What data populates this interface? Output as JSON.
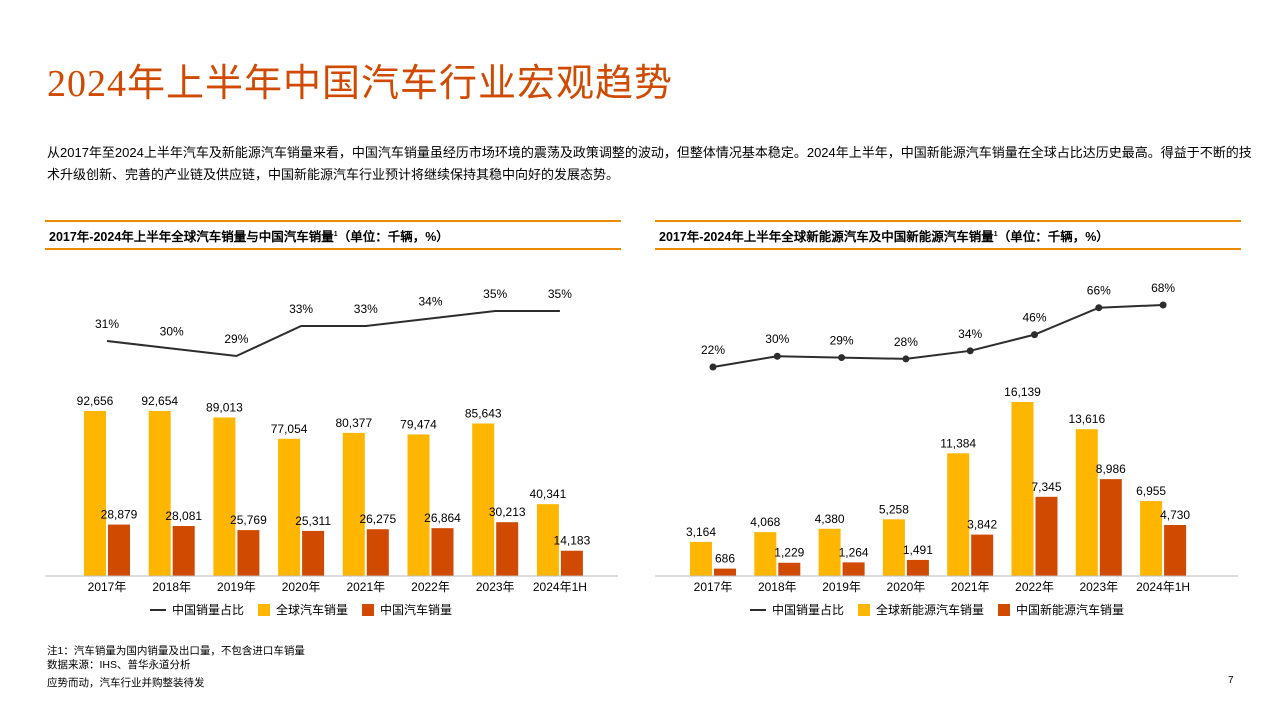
{
  "title": "2024年上半年中国汽车行业宏观趋势",
  "intro": "从2017年至2024上半年汽车及新能源汽车销量来看，中国汽车销量虽经历市场环境的震荡及政策调整的波动，但整体情况基本稳定。2024年上半年，中国新能源汽车销量在全球占比达历史最高。得益于不断的技术升级创新、完善的产业链及供应链，中国新能源汽车行业预计将继续保持其稳中向好的发展态势。",
  "colors": {
    "accent": "#D04A02",
    "global": "#FFB600",
    "china": "#D04A02",
    "line": "#2D2D2D",
    "rule": "#EB8C00"
  },
  "chart_data": [
    {
      "type": "bar+line",
      "title": "2017年-2024年上半年全球汽车销量与中国汽车销量",
      "title_sup": "1",
      "title_unit": "（单位：千辆，%）",
      "categories": [
        "2017年",
        "2018年",
        "2019年",
        "2020年",
        "2021年",
        "2022年",
        "2023年",
        "2024年1H"
      ],
      "series": [
        {
          "name": "中国销量占比",
          "kind": "line",
          "values": [
            31,
            30,
            29,
            33,
            33,
            34,
            35,
            35
          ],
          "labels": [
            "31%",
            "30%",
            "29%",
            "33%",
            "33%",
            "34%",
            "35%",
            "35%"
          ]
        },
        {
          "name": "全球汽车销量",
          "kind": "bar",
          "values": [
            92656,
            92654,
            89013,
            77054,
            80377,
            79474,
            85643,
            40341
          ],
          "labels": [
            "92,656",
            "92,654",
            "89,013",
            "77,054",
            "80,377",
            "79,474",
            "85,643",
            "40,341"
          ]
        },
        {
          "name": "中国汽车销量",
          "kind": "bar",
          "values": [
            28879,
            28081,
            25769,
            25311,
            26275,
            26864,
            30213,
            14183
          ],
          "labels": [
            "28,879",
            "28,081",
            "25,769",
            "25,311",
            "26,275",
            "26,864",
            "30,213",
            "14,183"
          ]
        }
      ],
      "legend": "bottom",
      "markers": false
    },
    {
      "type": "bar+line",
      "title": "2017年-2024年上半年全球新能源汽车及中国新能源汽车销量",
      "title_sup": "1",
      "title_unit": "（单位：千辆，%）",
      "categories": [
        "2017年",
        "2018年",
        "2019年",
        "2020年",
        "2021年",
        "2022年",
        "2023年",
        "2024年1H"
      ],
      "series": [
        {
          "name": "中国销量占比",
          "kind": "line",
          "values": [
            22,
            30,
            29,
            28,
            34,
            46,
            66,
            68
          ],
          "labels": [
            "22%",
            "30%",
            "29%",
            "28%",
            "34%",
            "46%",
            "66%",
            "68%"
          ]
        },
        {
          "name": "全球新能源汽车销量",
          "kind": "bar",
          "values": [
            3164,
            4068,
            4380,
            5258,
            11384,
            16139,
            13616,
            6955
          ],
          "labels": [
            "3,164",
            "4,068",
            "4,380",
            "5,258",
            "11,384",
            "16,139",
            "13,616",
            "6,955"
          ]
        },
        {
          "name": "中国新能源汽车销量",
          "kind": "bar",
          "values": [
            686,
            1229,
            1264,
            1491,
            3842,
            7345,
            8986,
            4730
          ],
          "labels": [
            "686",
            "1,229",
            "1,264",
            "1,491",
            "3,842",
            "7,345",
            "8,986",
            "4,730"
          ]
        }
      ],
      "legend": "bottom",
      "markers": true
    }
  ],
  "footnotes": {
    "note": "注1：汽车销量为国内销量及出口量，不包含进口车销量",
    "source": "数据来源：IHS、普华永道分析",
    "footer": "应势而动，汽车行业并购整装待发",
    "page": "7"
  }
}
